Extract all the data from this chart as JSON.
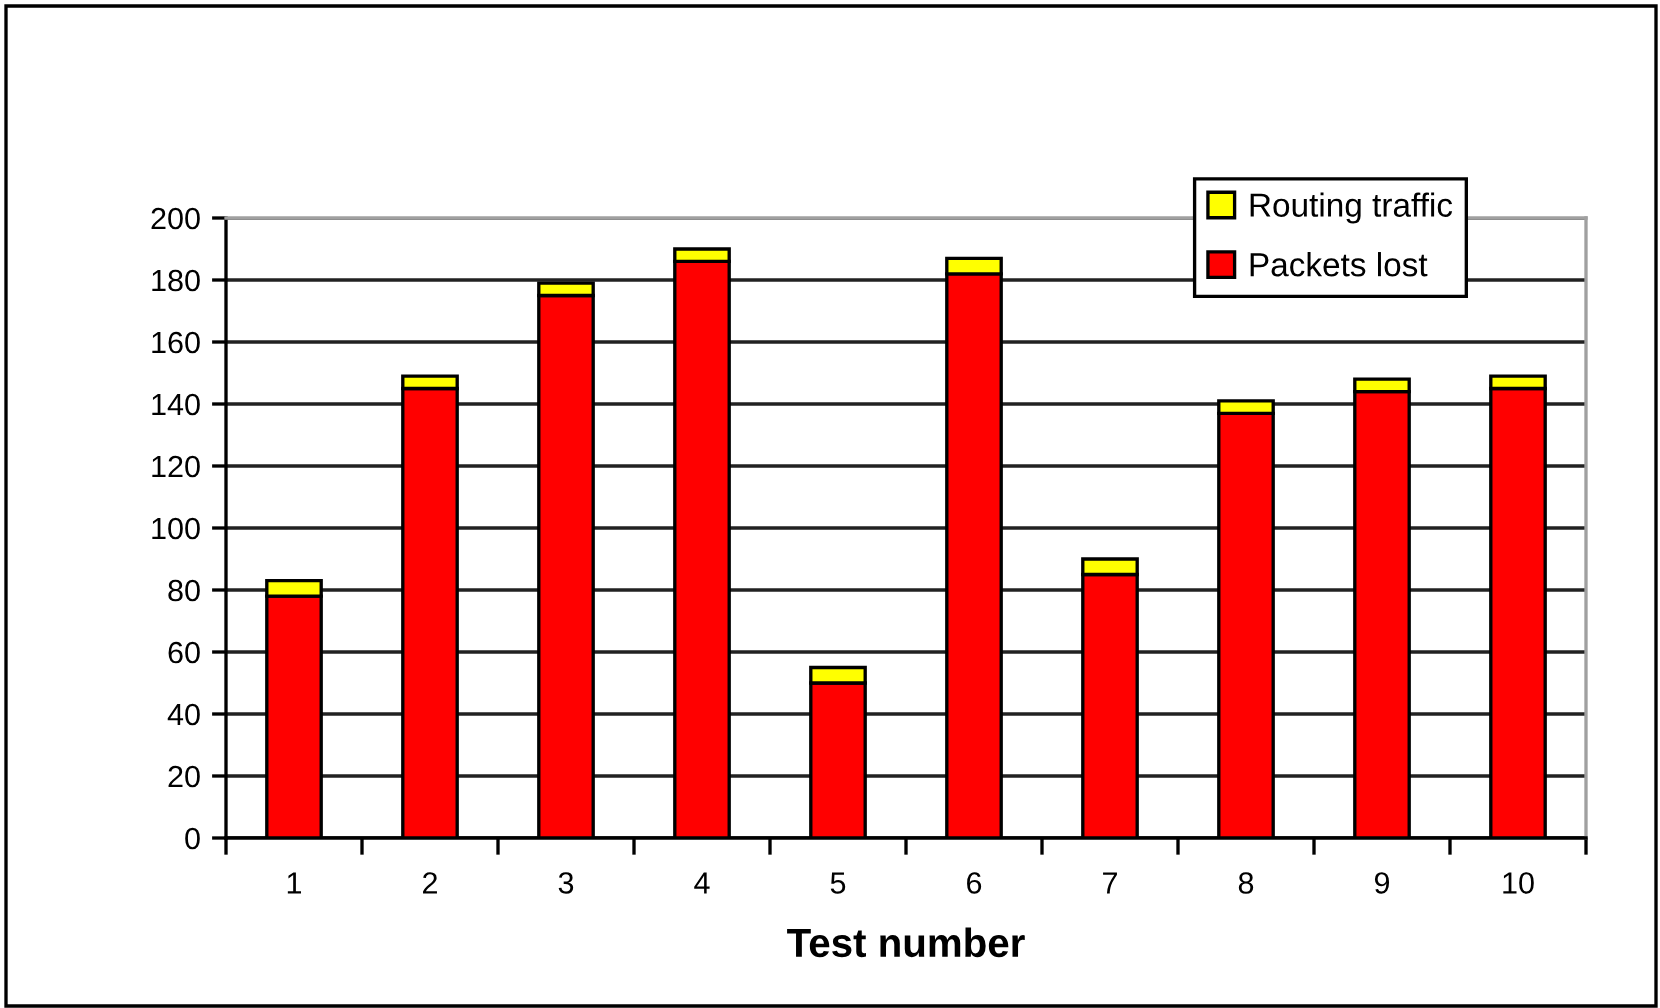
{
  "chart_data": {
    "type": "bar",
    "stacked": true,
    "categories": [
      "1",
      "2",
      "3",
      "4",
      "5",
      "6",
      "7",
      "8",
      "9",
      "10"
    ],
    "series": [
      {
        "name": "Packets lost",
        "color": "#ff0000",
        "values": [
          78,
          145,
          175,
          186,
          50,
          182,
          85,
          137,
          144,
          145
        ]
      },
      {
        "name": "Routing traffic",
        "color": "#ffff00",
        "values": [
          5,
          4,
          4,
          4,
          5,
          5,
          5,
          4,
          4,
          4
        ]
      }
    ],
    "xlabel": "Test number",
    "ylim": [
      0,
      200
    ],
    "yticks": [
      0,
      20,
      40,
      60,
      80,
      100,
      120,
      140,
      160,
      180,
      200
    ],
    "grid": "y",
    "legend": "top right"
  }
}
